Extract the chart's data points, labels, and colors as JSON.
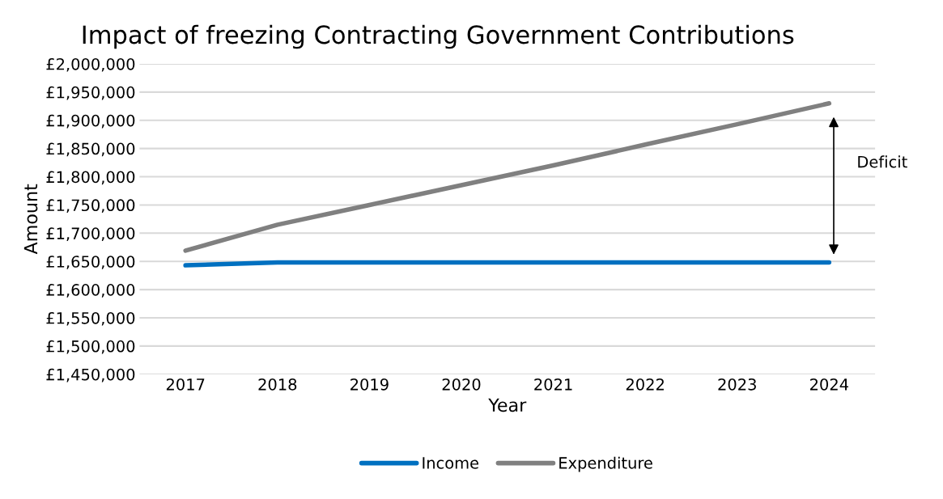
{
  "chart_data": {
    "type": "line",
    "title": "Impact of freezing Contracting Government Contributions",
    "xlabel": "Year",
    "ylabel": "Amount",
    "categories": [
      "2017",
      "2018",
      "2019",
      "2020",
      "2021",
      "2022",
      "2023",
      "2024"
    ],
    "series": [
      {
        "name": "Income",
        "color": "#0070c0",
        "values": [
          1643000,
          1648000,
          1648000,
          1648000,
          1648000,
          1648000,
          1648000,
          1648000
        ]
      },
      {
        "name": "Expenditure",
        "color": "#808080",
        "values": [
          1669000,
          1715000,
          1750000,
          1785000,
          1820000,
          1857000,
          1893000,
          1930000
        ]
      }
    ],
    "ylim": [
      1450000,
      2000000
    ],
    "yticks": [
      {
        "value": 1450000,
        "label": "£1,450,000"
      },
      {
        "value": 1500000,
        "label": "£1,500,000"
      },
      {
        "value": 1550000,
        "label": "£1,550,000"
      },
      {
        "value": 1600000,
        "label": "£1,600,000"
      },
      {
        "value": 1650000,
        "label": "£1,650,000"
      },
      {
        "value": 1700000,
        "label": "£1,700,000"
      },
      {
        "value": 1750000,
        "label": "£1,750,000"
      },
      {
        "value": 1800000,
        "label": "£1,800,000"
      },
      {
        "value": 1850000,
        "label": "£1,850,000"
      },
      {
        "value": 1900000,
        "label": "£1,900,000"
      },
      {
        "value": 1950000,
        "label": "£1,950,000"
      },
      {
        "value": 2000000,
        "label": "£2,000,000"
      }
    ],
    "annotations": [
      "Deficit"
    ],
    "grid": "y",
    "legend": "bottom",
    "marker": "none",
    "line_style": "solid"
  }
}
